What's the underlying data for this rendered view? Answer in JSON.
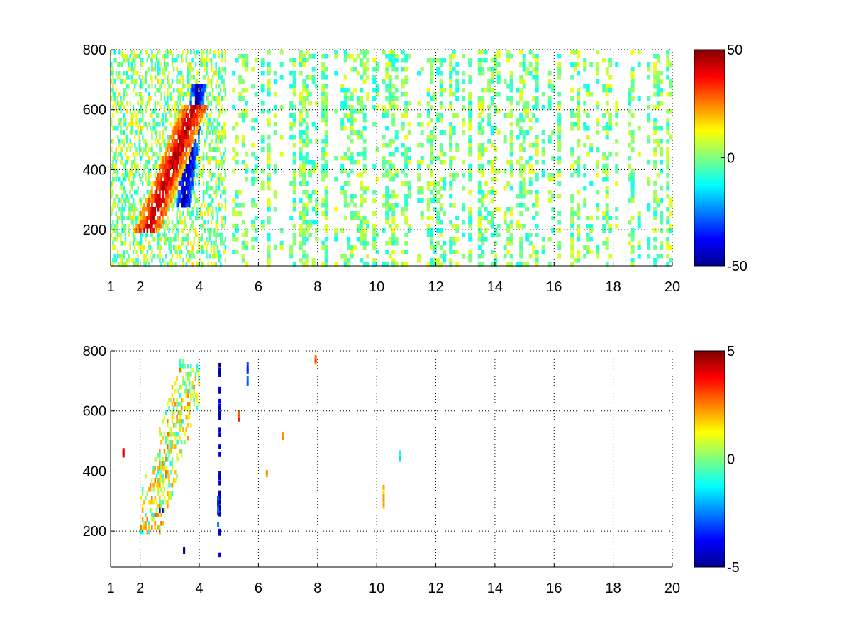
{
  "chart_data": [
    {
      "type": "heatmap",
      "title": "",
      "xlabel": "",
      "ylabel": "",
      "xlim": [
        1,
        20
      ],
      "ylim": [
        80,
        800
      ],
      "x_ticks": [
        "1",
        "2",
        "4",
        "6",
        "8",
        "10",
        "12",
        "14",
        "16",
        "18",
        "20"
      ],
      "y_ticks": [
        "200",
        "400",
        "600",
        "800"
      ],
      "grid": true,
      "grid_style": "dotted",
      "colormap": "jet",
      "colorbar": {
        "range": [
          -50,
          50
        ],
        "ticks": [
          "50",
          "0",
          "-50"
        ]
      },
      "description": "Dense scatter of thin vertical colored streaks. Strong positive ridge (~+30 to +50) at x 2.3-3.7, y 230-550; strong negative ridge (~-30 to -50) at x 3.4-4.0, y 300-650; scattered small values (about -15 to +15) across x 4-20 in vertical columns with gaps.",
      "regions": [
        {
          "x": [
            2.3,
            3.1
          ],
          "y": [
            240,
            420
          ],
          "value": 38
        },
        {
          "x": [
            2.9,
            3.6
          ],
          "y": [
            320,
            560
          ],
          "value": 28
        },
        {
          "x": [
            3.5,
            3.9
          ],
          "y": [
            330,
            640
          ],
          "value": -40
        },
        {
          "x": [
            3.2,
            3.6
          ],
          "y": [
            260,
            420
          ],
          "value": -22
        },
        {
          "x": [
            1.8,
            2.6
          ],
          "y": [
            200,
            300
          ],
          "value": 10
        },
        {
          "x": [
            4.0,
            5.0
          ],
          "y": [
            80,
            800
          ],
          "value": -12
        }
      ]
    },
    {
      "type": "heatmap",
      "title": "",
      "xlabel": "",
      "ylabel": "",
      "xlim": [
        1,
        20
      ],
      "ylim": [
        80,
        800
      ],
      "x_ticks": [
        "1",
        "2",
        "4",
        "6",
        "8",
        "10",
        "12",
        "14",
        "16",
        "18",
        "20"
      ],
      "y_ticks": [
        "200",
        "400",
        "600",
        "800"
      ],
      "grid": true,
      "grid_style": "dotted",
      "colormap": "jet",
      "colorbar": {
        "range": [
          -5,
          5
        ],
        "ticks": [
          "5",
          "0",
          "-5"
        ]
      },
      "description": "Sparse values concentrated in a diagonal band x 2.0-4.0, y 200-780 (mostly -1 to +2, a few -4 to -5 spots near x 2.7-3.1, y 260-320); isolated marks near x 4.6-4.8, 5.6, 6.8, 7.9, 10.2 (y 290-360), 10.7 (y ~460).",
      "regions": [
        {
          "x": [
            2.2,
            3.9
          ],
          "y": [
            220,
            760
          ],
          "value": 1
        },
        {
          "x": [
            2.6,
            3.1
          ],
          "y": [
            260,
            320
          ],
          "value": -4
        },
        {
          "x": [
            10.15,
            10.25
          ],
          "y": [
            290,
            360
          ],
          "value": 2
        },
        {
          "x": [
            10.7,
            10.8
          ],
          "y": [
            445,
            470
          ],
          "value": -1
        }
      ]
    }
  ]
}
